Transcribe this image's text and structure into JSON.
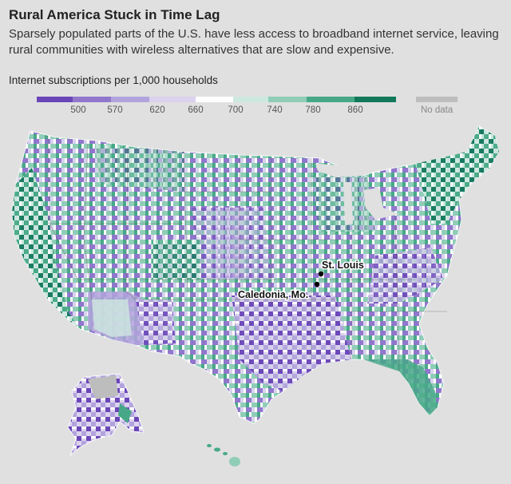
{
  "header": {
    "title": "Rural America Stuck in Time Lag",
    "subtitle": "Sparsely populated parts of the U.S. have less access to broadband internet service, leaving rural communities with wireless alternatives that are slow and expensive."
  },
  "legend": {
    "title": "Internet subscriptions per 1,000 households",
    "ticks": [
      "500",
      "570",
      "620",
      "660",
      "700",
      "740",
      "780",
      "860"
    ],
    "no_data_label": "No data",
    "colors": [
      "#6a46b8",
      "#9077cc",
      "#b3a3dc",
      "#dad2ee",
      "#ffffff",
      "#cde9df",
      "#8fcdb7",
      "#47a887",
      "#11785a"
    ],
    "no_data_color": "#bdbdbd"
  },
  "map": {
    "labels": {
      "st_louis": "St. Louis",
      "caledonia": "Caledonia, Mo."
    },
    "background": "#e0e0e0"
  }
}
